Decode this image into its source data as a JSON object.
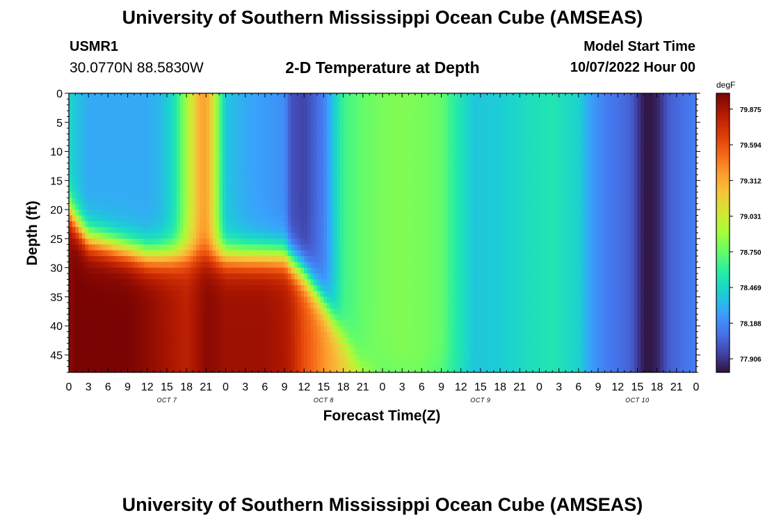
{
  "header": {
    "title": "University of Southern Mississippi Ocean Cube (AMSEAS)",
    "station": "USMR1",
    "coords": "30.0770N  88.5830W",
    "plot_title": "2-D Temperature at Depth",
    "model_start_label": "Model Start Time",
    "model_start_value": "10/07/2022 Hour 00"
  },
  "footer": {
    "title": "University of Southern Mississippi Ocean Cube (AMSEAS)"
  },
  "chart_data": {
    "type": "heatmap",
    "title": "2-D Temperature at Depth",
    "xlabel": "Forecast Time(Z)",
    "ylabel": "Depth (ft)",
    "colorbar_unit": "degF",
    "x_ticks": [
      "0",
      "3",
      "6",
      "9",
      "12",
      "15",
      "18",
      "21",
      "0",
      "3",
      "6",
      "9",
      "12",
      "15",
      "18",
      "21",
      "0",
      "3",
      "6",
      "9",
      "12",
      "15",
      "18",
      "21",
      "0",
      "3",
      "6",
      "9",
      "12",
      "15",
      "18",
      "21",
      "0"
    ],
    "day_labels": [
      "OCT 7",
      "OCT 8",
      "OCT 9",
      "OCT 10"
    ],
    "y_ticks": [
      "0",
      "5",
      "10",
      "15",
      "20",
      "25",
      "30",
      "35",
      "40",
      "45"
    ],
    "x_range_hours": [
      0,
      96
    ],
    "y_range_ft": [
      0,
      48
    ],
    "colorbar_ticks": [
      "79.875",
      "79.594",
      "79.312",
      "79.031",
      "78.750",
      "78.469",
      "78.188",
      "77.906"
    ],
    "color_range": [
      77.8,
      80.0
    ],
    "colormap": [
      "#30123b",
      "#4145ab",
      "#4675ed",
      "#39a2fc",
      "#1bcfd4",
      "#24eca6",
      "#61fc6c",
      "#a4fc3b",
      "#d1e834",
      "#f3c63a",
      "#fe9b2d",
      "#f36315",
      "#d93806",
      "#b11901",
      "#7a0403"
    ],
    "profile_hours": [
      0,
      1,
      3,
      6,
      9,
      12,
      14,
      16,
      18,
      20,
      21,
      22,
      24,
      27,
      30,
      33,
      34,
      36,
      39,
      42,
      45,
      48,
      51,
      54,
      57,
      59,
      62,
      66,
      70,
      74,
      78,
      80,
      82,
      84,
      86,
      88,
      89,
      90,
      91,
      92,
      94,
      96
    ],
    "surface_temp": [
      78.47,
      78.4,
      78.3,
      78.3,
      78.3,
      78.3,
      78.35,
      78.5,
      78.9,
      79.3,
      79.35,
      79.1,
      78.4,
      78.3,
      78.25,
      78.2,
      78.0,
      77.95,
      78.15,
      78.65,
      78.75,
      78.8,
      78.82,
      78.8,
      78.75,
      78.6,
      78.4,
      78.42,
      78.5,
      78.55,
      78.45,
      78.25,
      78.15,
      78.1,
      78.05,
      77.82,
      77.82,
      77.85,
      77.95,
      78.05,
      78.1,
      78.15
    ],
    "bottom_temp": [
      79.95,
      80.0,
      80.0,
      80.0,
      80.0,
      79.95,
      79.9,
      79.85,
      79.8,
      79.9,
      79.95,
      79.95,
      79.9,
      79.9,
      79.9,
      79.85,
      79.8,
      79.6,
      79.4,
      79.2,
      79.05,
      78.7,
      78.75,
      78.75,
      78.65,
      78.55,
      78.4,
      78.42,
      78.5,
      78.55,
      78.45,
      78.25,
      78.15,
      78.1,
      78.05,
      77.82,
      77.82,
      77.85,
      77.95,
      78.05,
      78.1,
      78.15
    ],
    "thermocline_depth_ft": [
      20,
      22,
      25,
      26,
      27,
      28,
      28,
      28,
      28,
      28,
      28,
      28,
      28,
      28,
      28,
      28,
      29,
      31,
      36,
      42,
      48,
      48,
      48,
      48,
      48,
      48,
      48,
      48,
      48,
      48,
      48,
      48,
      48,
      48,
      48,
      48,
      48,
      48,
      48,
      48,
      48,
      48
    ]
  }
}
